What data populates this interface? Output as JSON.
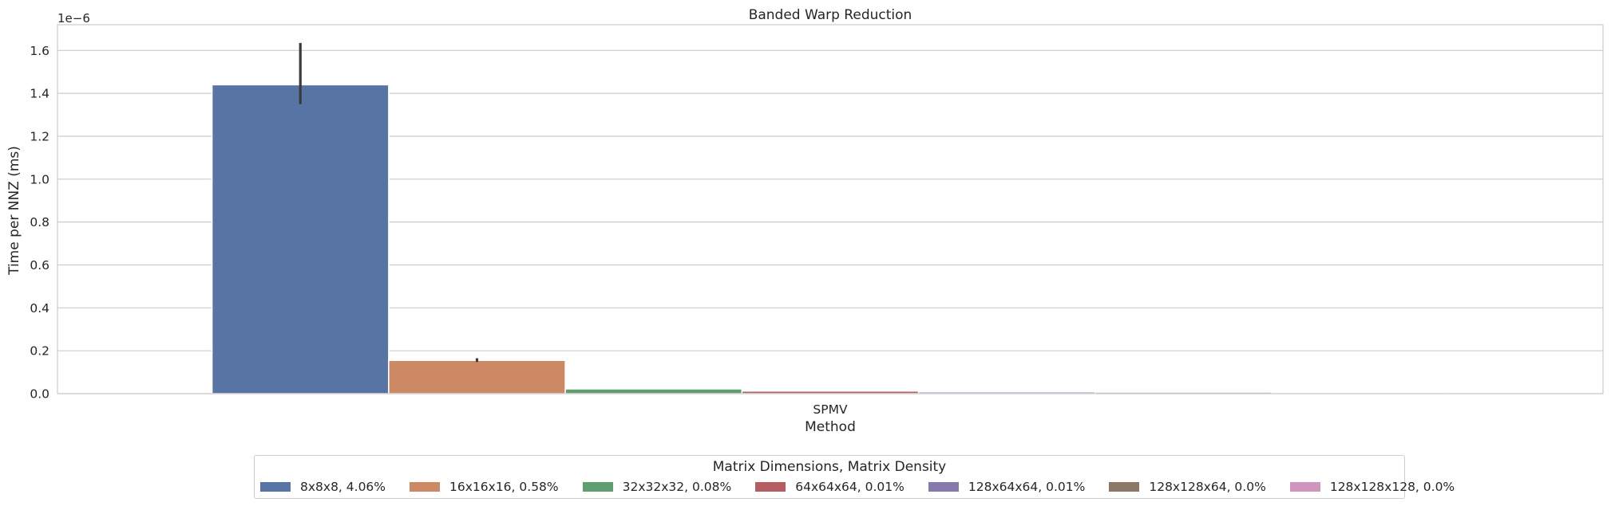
{
  "chart_data": {
    "type": "bar",
    "title": "Banded Warp Reduction",
    "xlabel": "Method",
    "ylabel": "Time per NNZ (ms)",
    "scale_label": "1e−6",
    "categories": [
      "SPMV"
    ],
    "ylim": [
      0,
      1.72
    ],
    "y_ticks": [
      "0.0",
      "0.2",
      "0.4",
      "0.6",
      "0.8",
      "1.0",
      "1.2",
      "1.4",
      "1.6"
    ],
    "grid": true,
    "legend_title": "Matrix Dimensions, Matrix Density",
    "legend_position": "bottom-center",
    "series": [
      {
        "name": "8x8x8, 4.06%",
        "values": [
          1.44
        ],
        "error": [
          1.35,
          1.635
        ],
        "color": "#5874a4"
      },
      {
        "name": "16x16x16, 0.58%",
        "values": [
          0.155
        ],
        "error": [
          0.148,
          0.165
        ],
        "color": "#cc8963"
      },
      {
        "name": "32x32x32, 0.08%",
        "values": [
          0.022
        ],
        "error": null,
        "color": "#5f9e6e"
      },
      {
        "name": "64x64x64, 0.01%",
        "values": [
          0.012
        ],
        "error": null,
        "color": "#b55d60"
      },
      {
        "name": "128x64x64, 0.01%",
        "values": [
          0.008
        ],
        "error": null,
        "color": "#857aab"
      },
      {
        "name": "128x128x64, 0.0%",
        "values": [
          0.007
        ],
        "error": null,
        "color": "#8d7866"
      },
      {
        "name": "128x128x128, 0.0%",
        "values": [
          0.006
        ],
        "error": null,
        "color": "#d095bf"
      }
    ]
  }
}
